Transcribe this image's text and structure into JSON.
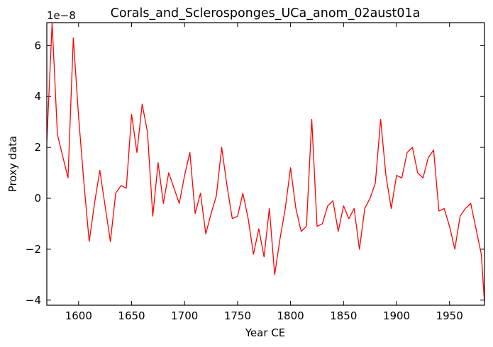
{
  "chart_data": {
    "type": "line",
    "title": "Corals_and_Sclerosponges_UCa_anom_02aust01a",
    "xlabel": "Year CE",
    "ylabel": "Proxy data",
    "y_offset_label": "1e−8",
    "y_scale_multiplier": 1e-08,
    "xlim": [
      1570,
      1983
    ],
    "ylim": [
      -4.2,
      6.9
    ],
    "x_ticks": [
      1600,
      1650,
      1700,
      1750,
      1800,
      1850,
      1900,
      1950
    ],
    "x_tick_labels": [
      "1600",
      "1650",
      "1700",
      "1750",
      "1800",
      "1850",
      "1900",
      "1950"
    ],
    "y_ticks": [
      -4,
      -2,
      0,
      2,
      4,
      6
    ],
    "y_tick_labels": [
      "−4",
      "−2",
      "0",
      "2",
      "4",
      "6"
    ],
    "grid": false,
    "series": [
      {
        "color": "#ff0000",
        "x": [
          1570,
          1575,
          1580,
          1590,
          1595,
          1600,
          1605,
          1610,
          1615,
          1620,
          1625,
          1630,
          1635,
          1640,
          1645,
          1650,
          1655,
          1660,
          1665,
          1670,
          1675,
          1680,
          1685,
          1690,
          1695,
          1700,
          1705,
          1710,
          1715,
          1720,
          1725,
          1730,
          1735,
          1740,
          1745,
          1750,
          1755,
          1760,
          1765,
          1770,
          1775,
          1780,
          1785,
          1790,
          1795,
          1800,
          1805,
          1810,
          1815,
          1820,
          1825,
          1830,
          1835,
          1840,
          1845,
          1850,
          1855,
          1860,
          1865,
          1870,
          1875,
          1880,
          1885,
          1890,
          1895,
          1900,
          1905,
          1910,
          1915,
          1920,
          1925,
          1930,
          1935,
          1940,
          1945,
          1950,
          1955,
          1960,
          1965,
          1970,
          1975,
          1980,
          1983
        ],
        "y": [
          2.2,
          6.9,
          2.5,
          0.8,
          6.3,
          3.2,
          0.6,
          -1.7,
          -0.2,
          1.1,
          -0.3,
          -1.7,
          0.2,
          0.5,
          0.4,
          3.3,
          1.8,
          3.7,
          2.6,
          -0.7,
          1.4,
          -0.2,
          1.0,
          0.4,
          -0.2,
          0.9,
          1.8,
          -0.6,
          0.2,
          -1.4,
          -0.6,
          0.1,
          2.0,
          0.5,
          -0.8,
          -0.7,
          0.2,
          -0.8,
          -2.2,
          -1.2,
          -2.3,
          -0.4,
          -3.0,
          -1.6,
          -0.4,
          1.2,
          -0.4,
          -1.3,
          -1.1,
          3.1,
          -1.1,
          -1.0,
          -0.3,
          -0.1,
          -1.3,
          -0.3,
          -0.8,
          -0.4,
          -2.0,
          -0.4,
          0.0,
          0.6,
          3.1,
          0.9,
          -0.4,
          0.9,
          0.8,
          1.8,
          2.0,
          1.0,
          0.8,
          1.6,
          1.9,
          -0.5,
          -0.4,
          -1.1,
          -2.0,
          -0.7,
          -0.4,
          -0.2,
          -1.2,
          -2.2,
          -4.1
        ]
      }
    ]
  }
}
